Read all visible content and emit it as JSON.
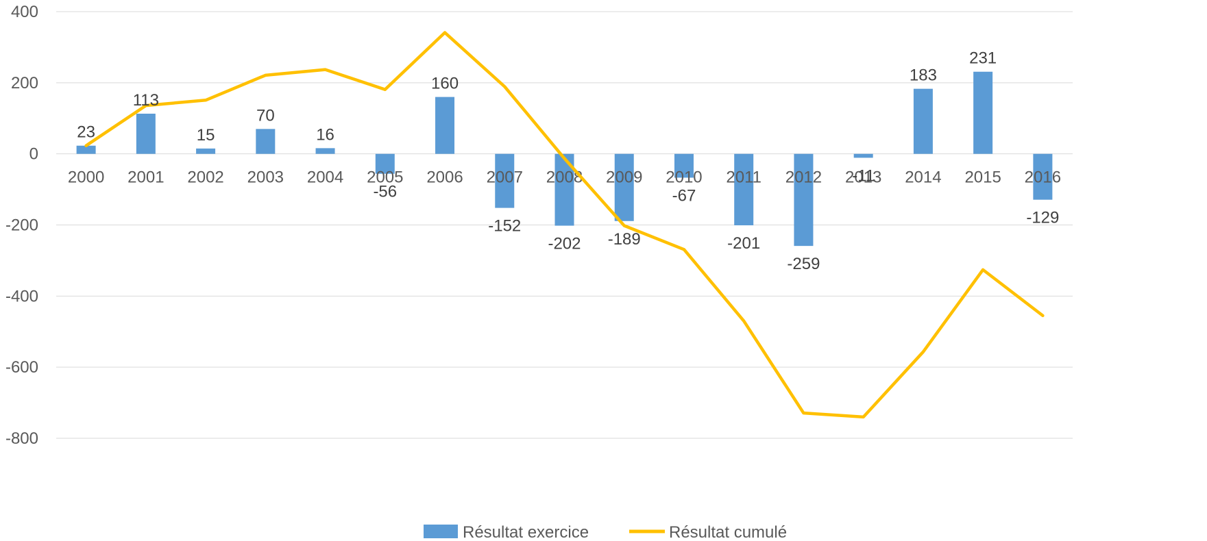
{
  "chart_data": {
    "type": "bar",
    "title": "",
    "xlabel": "",
    "ylabel": "",
    "categories": [
      "2000",
      "2001",
      "2002",
      "2003",
      "2004",
      "2005",
      "2006",
      "2007",
      "2008",
      "2009",
      "2010",
      "2011",
      "2012",
      "2013",
      "2014",
      "2015",
      "2016"
    ],
    "series": [
      {
        "name": "Résultat exercice",
        "type": "bar",
        "color": "#5B9BD5",
        "values": [
          23,
          113,
          15,
          70,
          16,
          -56,
          160,
          -152,
          -202,
          -189,
          -67,
          -201,
          -259,
          -11,
          183,
          231,
          -129
        ],
        "data_labels": [
          "23",
          "113",
          "15",
          "70",
          "16",
          "-56",
          "160",
          "-152",
          "-202",
          "-189",
          "-67",
          "-201",
          "-259",
          "-11",
          "183",
          "231",
          "-129"
        ]
      },
      {
        "name": "Résultat cumulé",
        "type": "line",
        "color": "#FFC000",
        "values": [
          23,
          136,
          151,
          221,
          237,
          181,
          341,
          189,
          -13,
          -202,
          -269,
          -470,
          -729,
          -740,
          -557,
          -326,
          -455
        ]
      }
    ],
    "ylim": [
      -800,
      400
    ],
    "yticks": [
      400,
      200,
      0,
      -200,
      -400,
      -600,
      -800
    ],
    "ytick_labels": [
      "400",
      "200",
      "0",
      "-200",
      "-400",
      "-600",
      "-800"
    ],
    "grid": true,
    "legend": "bottom"
  }
}
